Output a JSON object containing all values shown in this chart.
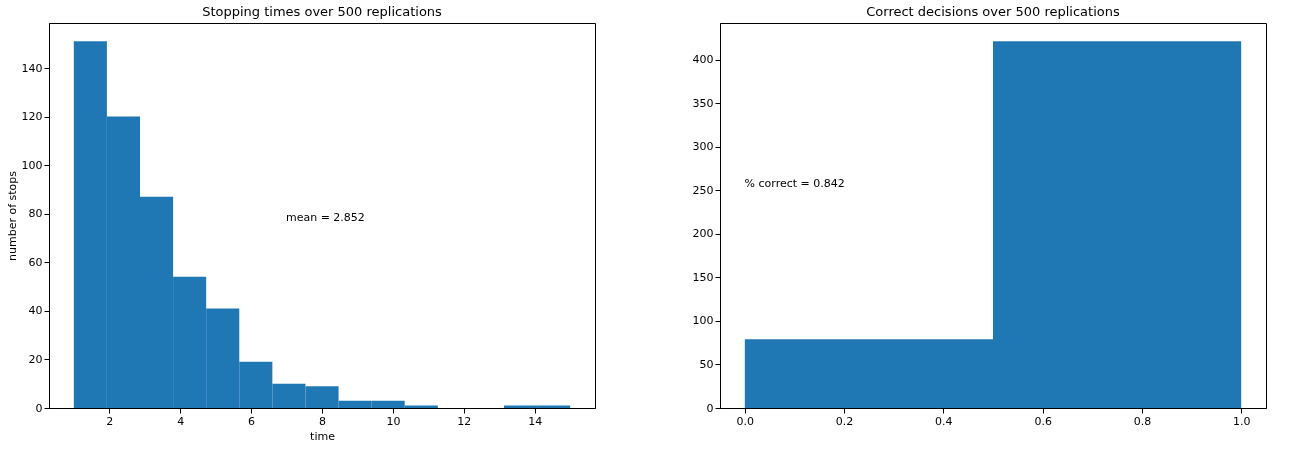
{
  "chart_data": [
    {
      "type": "histogram",
      "title": "Stopping times over 500 replications",
      "xlabel": "time",
      "ylabel": "number of stops",
      "color": "#1f77b4",
      "bins": [
        1,
        1.933,
        2.867,
        3.8,
        4.733,
        5.667,
        6.6,
        7.533,
        8.467,
        9.4,
        10.333,
        11.267,
        12.2,
        13.133,
        14.067,
        15
      ],
      "values": [
        151,
        120,
        87,
        54,
        41,
        19,
        10,
        9,
        3,
        3,
        1,
        0,
        0,
        1,
        1
      ],
      "xlim": [
        0.3,
        15.7
      ],
      "xticks": [
        2,
        4,
        6,
        8,
        10,
        12,
        14
      ],
      "ylim": [
        0,
        158.55
      ],
      "yticks": [
        0,
        20,
        40,
        60,
        80,
        100,
        120,
        140
      ],
      "grid": false,
      "annotations": [
        "mean = 2.852"
      ]
    },
    {
      "type": "histogram",
      "title": "Correct decisions over 500 replications",
      "color": "#1f77b4",
      "bins": [
        0,
        0.5,
        1
      ],
      "values": [
        79,
        421
      ],
      "xlim": [
        -0.05,
        1.05
      ],
      "xticks": [
        {
          "value": 0,
          "label": "0.0"
        },
        {
          "value": 0.2,
          "label": "0.2"
        },
        {
          "value": 0.4,
          "label": "0.4"
        },
        {
          "value": 0.6,
          "label": "0.6"
        },
        {
          "value": 0.8,
          "label": "0.8"
        },
        {
          "value": 1,
          "label": "1.0"
        }
      ],
      "ylim": [
        0,
        442.05
      ],
      "yticks": [
        0,
        50,
        100,
        150,
        200,
        250,
        300,
        350,
        400
      ],
      "grid": false,
      "annotations": [
        "% correct = 0.842"
      ]
    }
  ]
}
